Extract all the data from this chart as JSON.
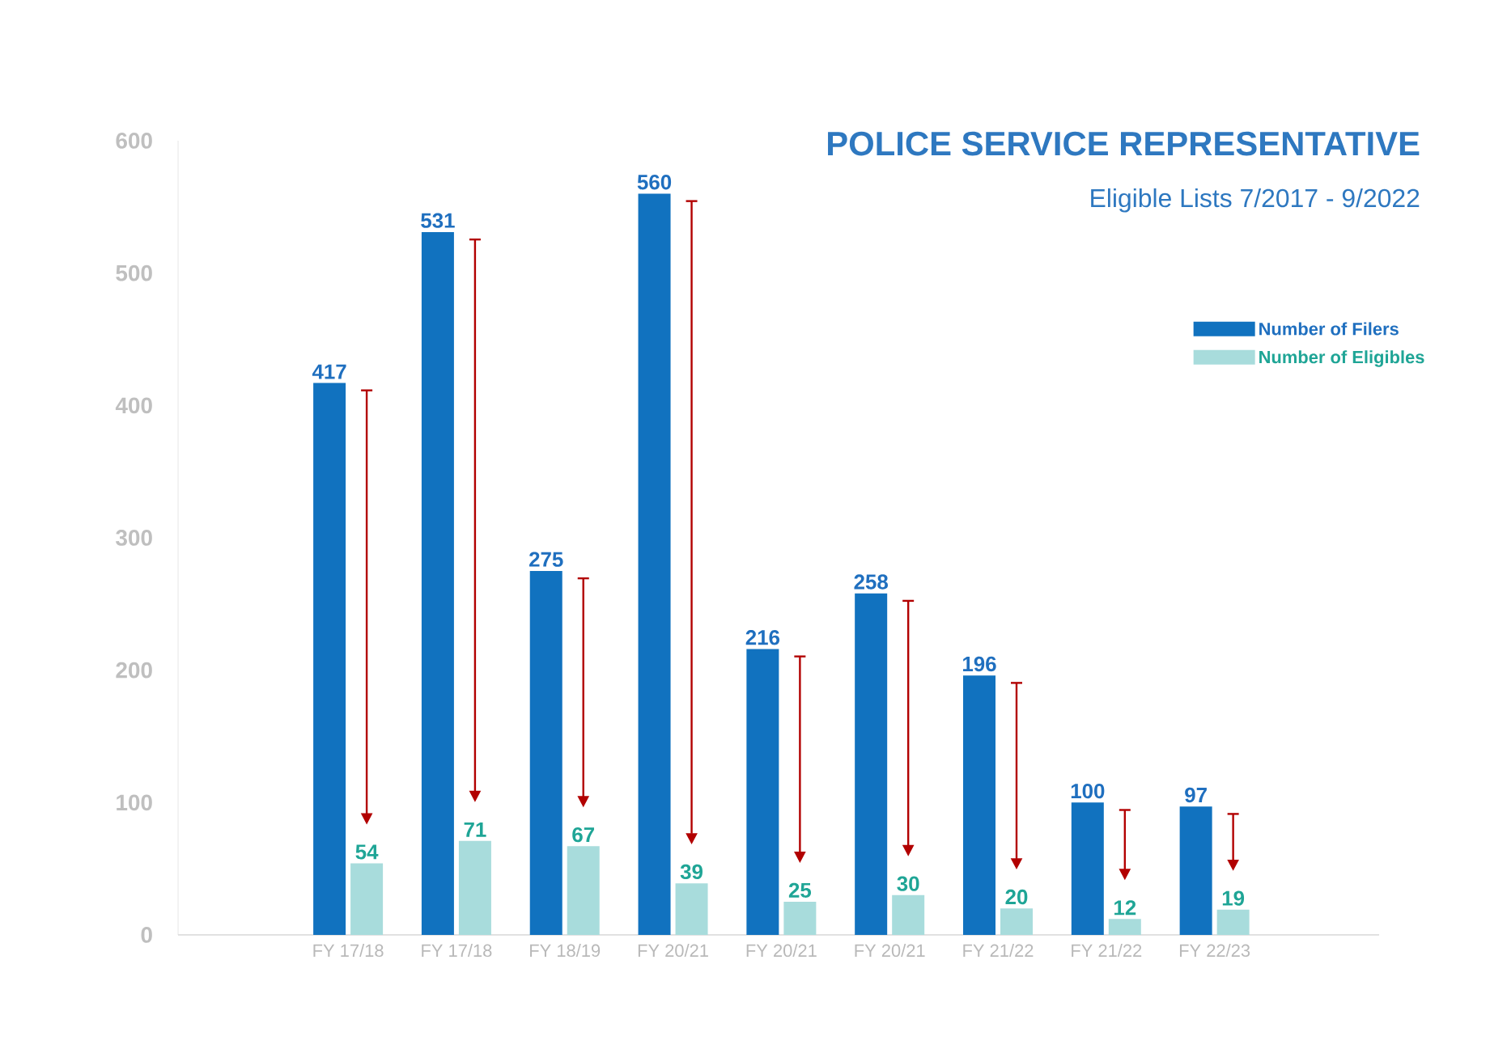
{
  "chart_data": {
    "type": "bar",
    "title": "POLICE SERVICE REPRESENTATIVE",
    "subtitle": "Eligible Lists 7/2017 - 9/2022",
    "categories": [
      "FY 17/18",
      "FY 17/18",
      "FY 18/19",
      "FY 20/21",
      "FY 20/21",
      "FY 20/21",
      "FY 21/22",
      "FY 21/22",
      "FY 22/23"
    ],
    "series": [
      {
        "name": "Number of Filers",
        "color": "#1172bf",
        "values": [
          417,
          531,
          275,
          560,
          216,
          258,
          196,
          100,
          97
        ]
      },
      {
        "name": "Number of Eligibles",
        "color": "#a8dcdc",
        "values": [
          54,
          71,
          67,
          39,
          25,
          30,
          20,
          12,
          19
        ]
      }
    ],
    "ylim": [
      0,
      600
    ],
    "yticks": [
      0,
      100,
      200,
      300,
      400,
      500,
      600
    ],
    "data_labels": true,
    "legend": "top right",
    "grid": false
  }
}
